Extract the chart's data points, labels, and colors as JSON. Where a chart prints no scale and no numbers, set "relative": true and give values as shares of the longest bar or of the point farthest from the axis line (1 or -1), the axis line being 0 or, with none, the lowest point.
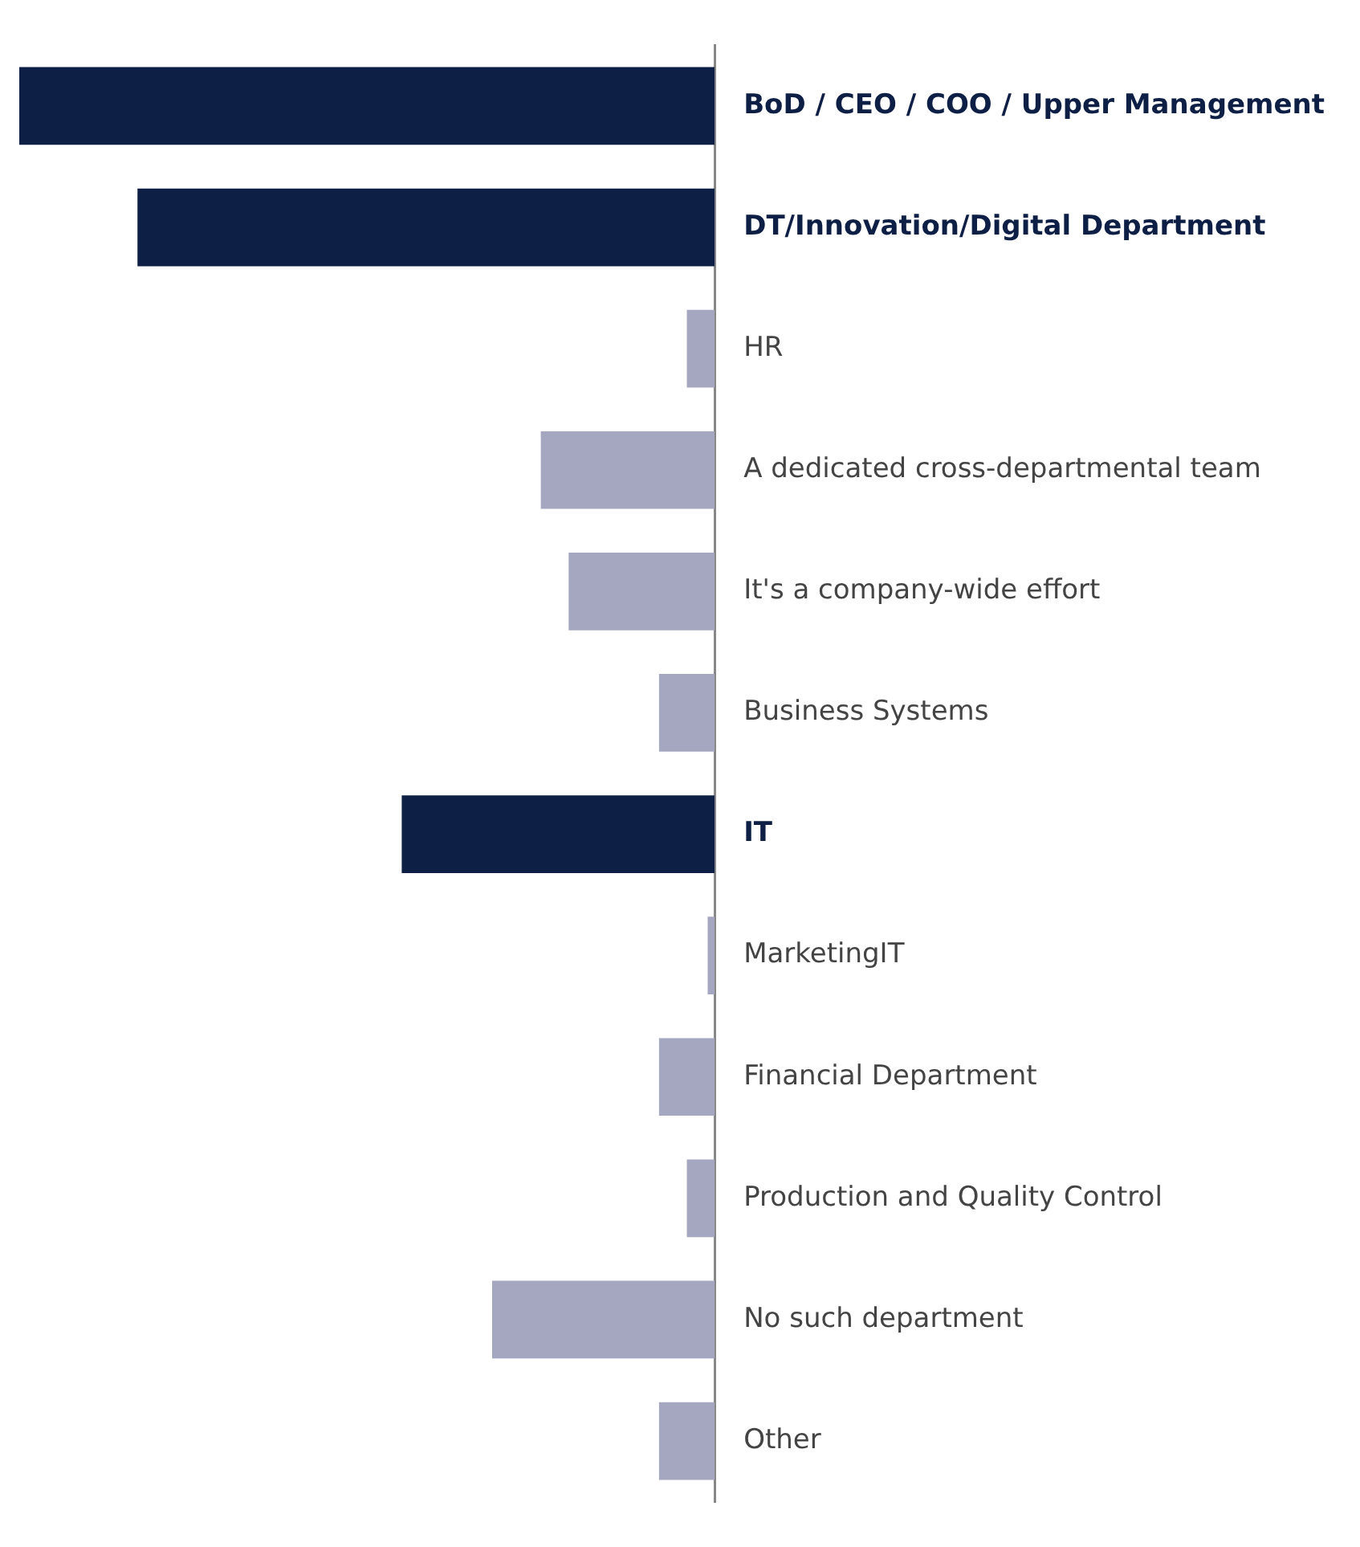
{
  "chart_data": {
    "type": "bar",
    "orientation": "horizontal",
    "relative": true,
    "categories": [
      "BoD / CEO / COO / Upper Management",
      "DT/Innovation/Digital Department",
      "HR",
      "A dedicated cross-departmental team",
      "It's a company-wide effort",
      "Business Systems",
      "IT",
      "MarketingIT",
      "Financial Department",
      "Production and Quality Control",
      "No such department",
      "Other"
    ],
    "values": [
      -1,
      -0.83,
      -0.04,
      -0.25,
      -0.21,
      -0.08,
      -0.45,
      -0.01,
      -0.08,
      -0.04,
      -0.32,
      -0.08
    ],
    "colors": [
      "#0d1f45",
      "#0d1f45",
      "#a5a7c0",
      "#a5a7c0",
      "#a5a7c0",
      "#a5a7c0",
      "#0d1f45",
      "#a5a7c0",
      "#a5a7c0",
      "#a5a7c0",
      "#a5a7c0",
      "#a5a7c0"
    ],
    "legend": false
  }
}
